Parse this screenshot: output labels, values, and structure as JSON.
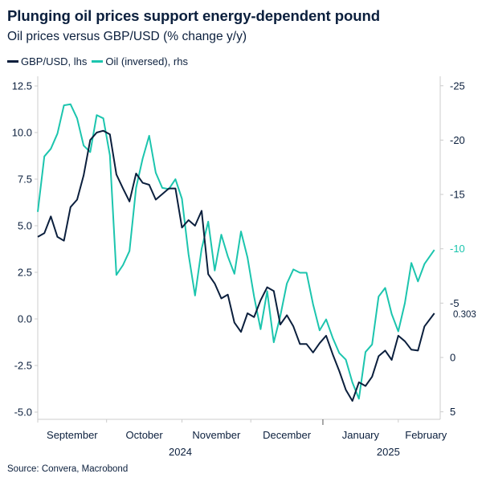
{
  "title": "Plunging oil prices support energy-dependent pound",
  "subtitle": "Oil prices versus GBP/USD (% change y/y)",
  "source": "Source: Convera, Macrobond",
  "colors": {
    "gbp": "#0b1f3d",
    "oil": "#1cc5ae",
    "axis": "#cccccc",
    "text": "#0b1f3d"
  },
  "chart_data": {
    "type": "line",
    "title": "Plunging oil prices support energy-dependent pound",
    "subtitle": "Oil prices versus GBP/USD (% change y/y)",
    "legend_position": "top-left",
    "grid": false,
    "x_axis": {
      "type": "date (business days)",
      "months": [
        {
          "label": "September",
          "start": "2024-09-02"
        },
        {
          "label": "October",
          "start": "2024-10-01"
        },
        {
          "label": "November",
          "start": "2024-11-01"
        },
        {
          "label": "December",
          "start": "2024-12-02"
        },
        {
          "label": "January",
          "start": "2025-01-01"
        },
        {
          "label": "February",
          "start": "2025-02-03"
        }
      ],
      "years": [
        {
          "label": "2024"
        },
        {
          "label": "2025"
        }
      ],
      "end": "2025-02-19"
    },
    "y_left": {
      "ylim": [
        -5.5,
        13
      ],
      "ticks": [
        "12.5",
        "10.0",
        "7.5",
        "5.0",
        "2.5",
        "0.0",
        "-2.5",
        "-5.0"
      ],
      "tick_values": [
        12.5,
        10,
        7.5,
        5,
        2.5,
        0,
        -2.5,
        -5
      ]
    },
    "y_right": {
      "inverted": true,
      "ylim": [
        -26,
        5.5
      ],
      "ticks": [
        "-25",
        "-20",
        "-15",
        "-10",
        "-5",
        "0",
        "5"
      ],
      "tick_values": [
        -25,
        -20,
        -15,
        -10,
        -5,
        0,
        5
      ]
    },
    "x": [
      "2024-09-02",
      "2024-09-04",
      "2024-09-06",
      "2024-09-10",
      "2024-09-12",
      "2024-09-16",
      "2024-09-18",
      "2024-09-20",
      "2024-09-24",
      "2024-09-26",
      "2024-09-30",
      "2024-10-02",
      "2024-10-04",
      "2024-10-08",
      "2024-10-10",
      "2024-10-14",
      "2024-10-16",
      "2024-10-18",
      "2024-10-22",
      "2024-10-24",
      "2024-10-28",
      "2024-10-30",
      "2024-11-01",
      "2024-11-05",
      "2024-11-07",
      "2024-11-11",
      "2024-11-13",
      "2024-11-15",
      "2024-11-19",
      "2024-11-21",
      "2024-11-25",
      "2024-11-27",
      "2024-11-29",
      "2024-12-03",
      "2024-12-05",
      "2024-12-09",
      "2024-12-11",
      "2024-12-13",
      "2024-12-17",
      "2024-12-19",
      "2024-12-23",
      "2024-12-25",
      "2024-12-27",
      "2024-12-31",
      "2025-01-02",
      "2025-01-06",
      "2025-01-08",
      "2025-01-10",
      "2025-01-14",
      "2025-01-16",
      "2025-01-20",
      "2025-01-22",
      "2025-01-24",
      "2025-01-28",
      "2025-01-30",
      "2025-02-03",
      "2025-02-05",
      "2025-02-07",
      "2025-02-11",
      "2025-02-13",
      "2025-02-18"
    ],
    "series": [
      {
        "name": "GBP/USD, lhs",
        "axis": "left",
        "last_value_label": "0.303",
        "values": [
          4.4,
          4.6,
          5.5,
          4.4,
          4.2,
          6.0,
          6.4,
          7.7,
          9.6,
          10.0,
          10.1,
          9.9,
          7.75,
          7.0,
          6.3,
          7.8,
          7.3,
          7.2,
          6.4,
          6.7,
          7.0,
          7.0,
          4.9,
          5.3,
          5.0,
          5.8,
          2.4,
          1.9,
          1.1,
          1.3,
          -0.2,
          -0.7,
          0.3,
          0.1,
          1.0,
          1.7,
          1.5,
          -0.3,
          0.2,
          -0.4,
          -1.35,
          -1.35,
          -1.8,
          -1.3,
          -0.9,
          -1.9,
          -2.8,
          -3.8,
          -4.4,
          -3.4,
          -3.6,
          -3.1,
          -2.0,
          -1.7,
          -2.2,
          -0.9,
          -1.2,
          -1.65,
          -1.7,
          -0.4,
          0.303
        ]
      },
      {
        "name": "Oil (inversed), rhs",
        "axis": "right",
        "last_value_label": "-10",
        "values": [
          -13.4,
          -18.5,
          -19.2,
          -20.6,
          -23.2,
          -23.3,
          -22.0,
          -19.5,
          -18.9,
          -22.3,
          -22.0,
          -18.6,
          -7.6,
          -8.5,
          -9.8,
          -15.6,
          -18.3,
          -20.4,
          -17.0,
          -15.6,
          -15.5,
          -16.4,
          -14.6,
          -9.5,
          -5.7,
          -10.0,
          -12.5,
          -8.0,
          -11.3,
          -9.3,
          -7.7,
          -11.6,
          -9.2,
          -5.6,
          -2.6,
          -6.1,
          -1.4,
          -3.8,
          -6.8,
          -8.1,
          -7.8,
          -7.8,
          -4.9,
          -2.5,
          -3.5,
          -1.8,
          -0.4,
          0.2,
          2.3,
          3.8,
          -0.5,
          -1.2,
          -5.6,
          -6.4,
          -4.0,
          -2.4,
          -5.0,
          -8.7,
          -7.0,
          -8.6,
          -9.9
        ]
      }
    ]
  }
}
